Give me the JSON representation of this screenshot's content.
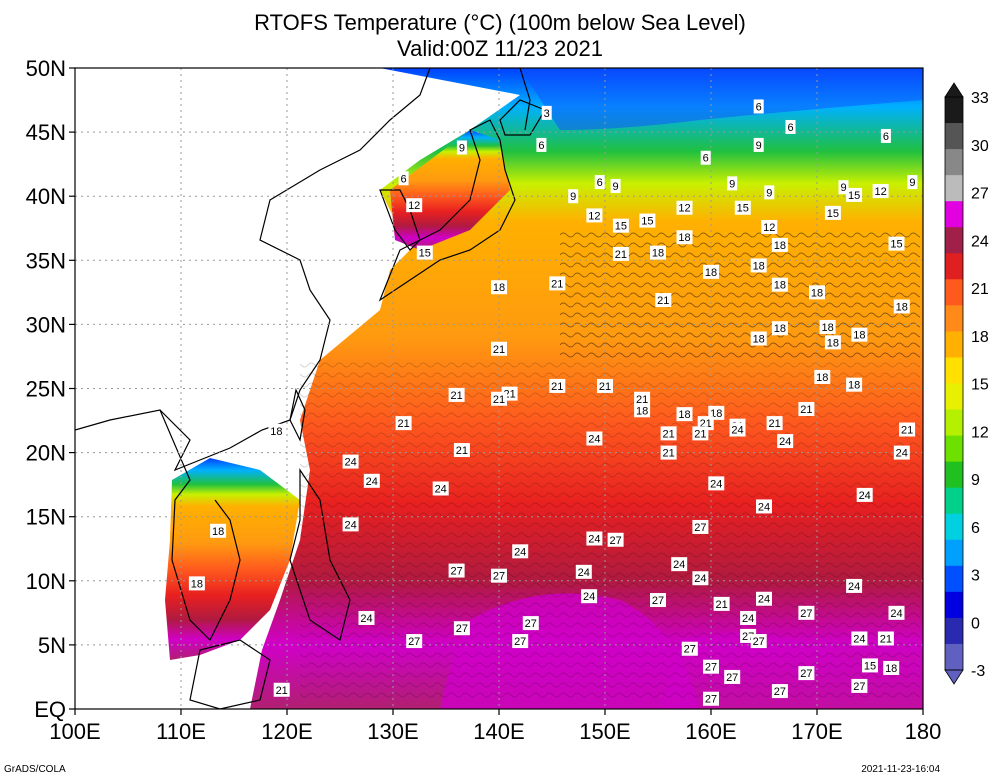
{
  "title_line1": "RTOFS Temperature (°C) (100m below Sea Level)",
  "title_line2": "Valid:00Z 11/23 2021",
  "footer_left": "GrADS/COLA",
  "footer_right": "2021-11-23-16:04",
  "lat_labels": [
    "50N",
    "45N",
    "40N",
    "35N",
    "30N",
    "25N",
    "20N",
    "15N",
    "10N",
    "5N",
    "EQ"
  ],
  "lon_labels": [
    "100E",
    "110E",
    "120E",
    "130E",
    "140E",
    "150E",
    "160E",
    "170E",
    "180"
  ],
  "colorbar": {
    "labels": [
      "33",
      "30",
      "27",
      "24",
      "21",
      "18",
      "15",
      "12",
      "9",
      "6",
      "3",
      "0",
      "-3"
    ],
    "colors": [
      "#1a1a1a",
      "#555555",
      "#888888",
      "#bbbbbb",
      "#e000e0",
      "#a0204a",
      "#e02020",
      "#ff5a1e",
      "#ff8a1a",
      "#ffb000",
      "#ffe000",
      "#e6f000",
      "#b4f000",
      "#6ee000",
      "#20c020",
      "#00d08a",
      "#00d0e0",
      "#00a0ff",
      "#0050ff",
      "#0000e0",
      "#2a2ab0",
      "#6060c0"
    ]
  },
  "chart_data": {
    "type": "heatmap",
    "variable": "Temperature (°C) at 100m below Sea Level",
    "xlim": [
      100,
      180
    ],
    "ylim": [
      0,
      50
    ],
    "contour_labels": [
      {
        "lon": 144.5,
        "lat": 46.5,
        "value": "3"
      },
      {
        "lon": 144,
        "lat": 44,
        "value": "6"
      },
      {
        "lon": 136.5,
        "lat": 43.8,
        "value": "9"
      },
      {
        "lon": 131,
        "lat": 41.4,
        "value": "6"
      },
      {
        "lon": 149.5,
        "lat": 41.1,
        "value": "6"
      },
      {
        "lon": 151,
        "lat": 40.8,
        "value": "9"
      },
      {
        "lon": 147,
        "lat": 40,
        "value": "9"
      },
      {
        "lon": 164.5,
        "lat": 47,
        "value": "6"
      },
      {
        "lon": 167.5,
        "lat": 45.4,
        "value": "6"
      },
      {
        "lon": 164.5,
        "lat": 44,
        "value": "9"
      },
      {
        "lon": 159.5,
        "lat": 43,
        "value": "6"
      },
      {
        "lon": 176.5,
        "lat": 44.7,
        "value": "6"
      },
      {
        "lon": 132,
        "lat": 39.3,
        "value": "12"
      },
      {
        "lon": 149,
        "lat": 38.5,
        "value": "12"
      },
      {
        "lon": 151.5,
        "lat": 37.7,
        "value": "15"
      },
      {
        "lon": 154,
        "lat": 38.1,
        "value": "15"
      },
      {
        "lon": 157.5,
        "lat": 39.1,
        "value": "12"
      },
      {
        "lon": 163,
        "lat": 39.1,
        "value": "15"
      },
      {
        "lon": 165.5,
        "lat": 40.3,
        "value": "9"
      },
      {
        "lon": 172.5,
        "lat": 40.7,
        "value": "9"
      },
      {
        "lon": 179,
        "lat": 41.1,
        "value": "9"
      },
      {
        "lon": 176,
        "lat": 40.4,
        "value": "12"
      },
      {
        "lon": 173.5,
        "lat": 40.1,
        "value": "15"
      },
      {
        "lon": 171.5,
        "lat": 38.7,
        "value": "15"
      },
      {
        "lon": 162,
        "lat": 41,
        "value": "9"
      },
      {
        "lon": 165.5,
        "lat": 37.6,
        "value": "12"
      },
      {
        "lon": 133,
        "lat": 35.6,
        "value": "15"
      },
      {
        "lon": 177.5,
        "lat": 36.3,
        "value": "15"
      },
      {
        "lon": 151.5,
        "lat": 35.5,
        "value": "21"
      },
      {
        "lon": 155,
        "lat": 35.6,
        "value": "18"
      },
      {
        "lon": 157.5,
        "lat": 36.8,
        "value": "18"
      },
      {
        "lon": 166.5,
        "lat": 36.2,
        "value": "18"
      },
      {
        "lon": 160,
        "lat": 34.1,
        "value": "18"
      },
      {
        "lon": 164.5,
        "lat": 34.6,
        "value": "18"
      },
      {
        "lon": 166.5,
        "lat": 33.1,
        "value": "18"
      },
      {
        "lon": 170,
        "lat": 32.5,
        "value": "18"
      },
      {
        "lon": 140,
        "lat": 32.9,
        "value": "18"
      },
      {
        "lon": 145.5,
        "lat": 33.2,
        "value": "21"
      },
      {
        "lon": 155.5,
        "lat": 31.9,
        "value": "21"
      },
      {
        "lon": 166.5,
        "lat": 29.7,
        "value": "18"
      },
      {
        "lon": 164.5,
        "lat": 28.9,
        "value": "18"
      },
      {
        "lon": 171,
        "lat": 29.8,
        "value": "18"
      },
      {
        "lon": 171.5,
        "lat": 28.6,
        "value": "18"
      },
      {
        "lon": 174,
        "lat": 29.2,
        "value": "18"
      },
      {
        "lon": 178,
        "lat": 31.4,
        "value": "18"
      },
      {
        "lon": 140,
        "lat": 28.1,
        "value": "21"
      },
      {
        "lon": 145.5,
        "lat": 25.2,
        "value": "21"
      },
      {
        "lon": 136,
        "lat": 24.5,
        "value": "21"
      },
      {
        "lon": 141,
        "lat": 24.6,
        "value": "21"
      },
      {
        "lon": 153.5,
        "lat": 23.3,
        "value": "18"
      },
      {
        "lon": 157.5,
        "lat": 23,
        "value": "18"
      },
      {
        "lon": 160.5,
        "lat": 23.1,
        "value": "18"
      },
      {
        "lon": 162.5,
        "lat": 22.1,
        "value": "21"
      },
      {
        "lon": 170.5,
        "lat": 25.9,
        "value": "18"
      },
      {
        "lon": 173.5,
        "lat": 25.3,
        "value": "18"
      },
      {
        "lon": 119,
        "lat": 21.7,
        "value": "18"
      },
      {
        "lon": 126,
        "lat": 19.3,
        "value": "24"
      },
      {
        "lon": 131,
        "lat": 22.3,
        "value": "21"
      },
      {
        "lon": 140,
        "lat": 24.2,
        "value": "21"
      },
      {
        "lon": 150,
        "lat": 25.2,
        "value": "21"
      },
      {
        "lon": 153.5,
        "lat": 24.2,
        "value": "21"
      },
      {
        "lon": 159.5,
        "lat": 22.3,
        "value": "21"
      },
      {
        "lon": 162.5,
        "lat": 21.8,
        "value": "24"
      },
      {
        "lon": 166,
        "lat": 22.3,
        "value": "21"
      },
      {
        "lon": 169,
        "lat": 23.4,
        "value": "21"
      },
      {
        "lon": 178.5,
        "lat": 21.8,
        "value": "21"
      },
      {
        "lon": 149,
        "lat": 21.1,
        "value": "24"
      },
      {
        "lon": 156,
        "lat": 21.5,
        "value": "21"
      },
      {
        "lon": 159,
        "lat": 21.5,
        "value": "21"
      },
      {
        "lon": 167,
        "lat": 20.9,
        "value": "24"
      },
      {
        "lon": 178,
        "lat": 20,
        "value": "24"
      },
      {
        "lon": 156,
        "lat": 20,
        "value": "21"
      },
      {
        "lon": 136.5,
        "lat": 20.2,
        "value": "21"
      },
      {
        "lon": 160.5,
        "lat": 17.6,
        "value": "24"
      },
      {
        "lon": 165,
        "lat": 15.8,
        "value": "24"
      },
      {
        "lon": 174.5,
        "lat": 16.7,
        "value": "24"
      },
      {
        "lon": 128,
        "lat": 17.8,
        "value": "24"
      },
      {
        "lon": 134.5,
        "lat": 17.2,
        "value": "24"
      },
      {
        "lon": 142,
        "lat": 12.3,
        "value": "24"
      },
      {
        "lon": 148,
        "lat": 10.7,
        "value": "24"
      },
      {
        "lon": 113.5,
        "lat": 13.9,
        "value": "18"
      },
      {
        "lon": 111.5,
        "lat": 9.8,
        "value": "18"
      },
      {
        "lon": 149,
        "lat": 13.3,
        "value": "24"
      },
      {
        "lon": 151,
        "lat": 13.2,
        "value": "27"
      },
      {
        "lon": 159,
        "lat": 14.2,
        "value": "27"
      },
      {
        "lon": 157,
        "lat": 11.3,
        "value": "24"
      },
      {
        "lon": 159,
        "lat": 10.2,
        "value": "24"
      },
      {
        "lon": 165,
        "lat": 8.6,
        "value": "24"
      },
      {
        "lon": 169,
        "lat": 7.5,
        "value": "27"
      },
      {
        "lon": 173.5,
        "lat": 9.6,
        "value": "24"
      },
      {
        "lon": 177.5,
        "lat": 7.5,
        "value": "24"
      },
      {
        "lon": 126,
        "lat": 14.4,
        "value": "24"
      },
      {
        "lon": 136,
        "lat": 10.8,
        "value": "27"
      },
      {
        "lon": 140,
        "lat": 10.4,
        "value": "27"
      },
      {
        "lon": 148.5,
        "lat": 8.8,
        "value": "24"
      },
      {
        "lon": 155,
        "lat": 8.5,
        "value": "27"
      },
      {
        "lon": 161,
        "lat": 8.2,
        "value": "21"
      },
      {
        "lon": 163.5,
        "lat": 7.1,
        "value": "24"
      },
      {
        "lon": 163.5,
        "lat": 5.7,
        "value": "27"
      },
      {
        "lon": 174,
        "lat": 5.5,
        "value": "24"
      },
      {
        "lon": 176.5,
        "lat": 5.5,
        "value": "21"
      },
      {
        "lon": 175,
        "lat": 3.4,
        "value": "15"
      },
      {
        "lon": 177,
        "lat": 3.2,
        "value": "18"
      },
      {
        "lon": 143,
        "lat": 6.7,
        "value": "27"
      },
      {
        "lon": 158,
        "lat": 4.7,
        "value": "27"
      },
      {
        "lon": 164.5,
        "lat": 5.3,
        "value": "27"
      },
      {
        "lon": 127.5,
        "lat": 7.1,
        "value": "24"
      },
      {
        "lon": 136.5,
        "lat": 6.3,
        "value": "27"
      },
      {
        "lon": 132,
        "lat": 5.3,
        "value": "27"
      },
      {
        "lon": 142,
        "lat": 5.3,
        "value": "27"
      },
      {
        "lon": 160,
        "lat": 3.3,
        "value": "27"
      },
      {
        "lon": 169,
        "lat": 2.8,
        "value": "27"
      },
      {
        "lon": 174,
        "lat": 1.8,
        "value": "27"
      },
      {
        "lon": 119.5,
        "lat": 1.5,
        "value": "21"
      },
      {
        "lon": 162,
        "lat": 2.5,
        "value": "27"
      },
      {
        "lon": 166.5,
        "lat": 1.4,
        "value": "27"
      },
      {
        "lon": 160,
        "lat": 0.8,
        "value": "27"
      }
    ]
  }
}
